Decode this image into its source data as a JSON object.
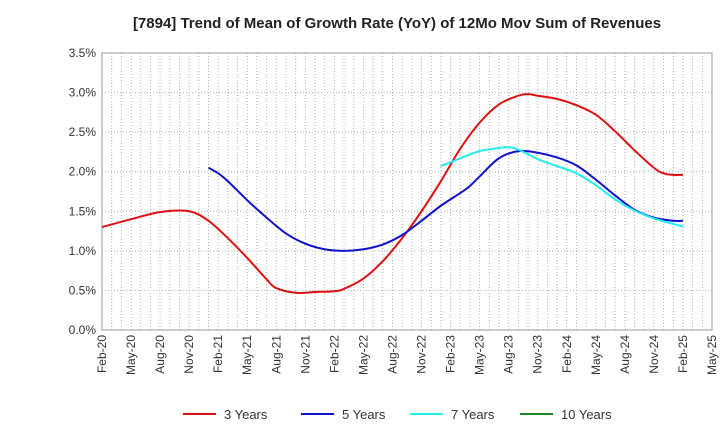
{
  "chart_data": {
    "type": "line",
    "title": "[7894]  Trend of Mean of Growth Rate (YoY) of 12Mo Mov Sum of Revenues",
    "xlabel": "",
    "ylabel": "",
    "ylim": [
      0,
      3.5
    ],
    "y_ticks": [
      0,
      0.5,
      1.0,
      1.5,
      2.0,
      2.5,
      3.0,
      3.5
    ],
    "y_tick_labels": [
      "0.0%",
      "0.5%",
      "1.0%",
      "1.5%",
      "2.0%",
      "2.5%",
      "3.0%",
      "3.5%"
    ],
    "x_tick_labels": [
      "Feb-20",
      "May-20",
      "Aug-20",
      "Nov-20",
      "Feb-21",
      "May-21",
      "Aug-21",
      "Nov-21",
      "Feb-22",
      "May-22",
      "Aug-22",
      "Nov-22",
      "Feb-23",
      "May-23",
      "Aug-23",
      "Nov-23",
      "Feb-24",
      "May-24",
      "Aug-24",
      "Nov-24",
      "Feb-25",
      "May-25"
    ],
    "x_range_months": [
      0,
      63
    ],
    "grid": true,
    "legend_position": "bottom",
    "series": [
      {
        "name": "3 Years",
        "color": "#dd1111",
        "x": [
          0,
          3,
          6,
          9,
          11,
          13,
          15,
          17,
          18,
          20,
          22,
          24,
          25,
          27,
          29,
          31,
          33,
          35,
          37,
          39,
          41,
          43,
          44,
          45,
          47,
          49,
          51,
          53,
          55,
          57,
          58,
          59,
          60
        ],
        "y": [
          1.3,
          1.4,
          1.49,
          1.5,
          1.38,
          1.16,
          0.91,
          0.64,
          0.53,
          0.47,
          0.48,
          0.49,
          0.52,
          0.65,
          0.87,
          1.16,
          1.5,
          1.88,
          2.29,
          2.62,
          2.85,
          2.96,
          2.98,
          2.96,
          2.92,
          2.84,
          2.72,
          2.51,
          2.27,
          2.05,
          1.98,
          1.96,
          1.96
        ]
      },
      {
        "name": "5 Years",
        "color": "#1111cc",
        "x": [
          11,
          12,
          13,
          15,
          17,
          19,
          21,
          23,
          25,
          27,
          29,
          31,
          33,
          35,
          37,
          38,
          39,
          41,
          43,
          45,
          47,
          49,
          51,
          53,
          55,
          57,
          59,
          60
        ],
        "y": [
          2.05,
          1.98,
          1.88,
          1.64,
          1.42,
          1.22,
          1.09,
          1.02,
          1.0,
          1.02,
          1.08,
          1.2,
          1.38,
          1.57,
          1.73,
          1.82,
          1.94,
          2.17,
          2.26,
          2.24,
          2.18,
          2.08,
          1.9,
          1.7,
          1.52,
          1.42,
          1.38,
          1.38
        ]
      },
      {
        "name": "7 Years",
        "color": "#22eeee",
        "x": [
          35,
          37,
          39,
          41,
          42,
          43,
          45,
          47,
          49,
          51,
          53,
          55,
          57,
          59,
          60
        ],
        "y": [
          2.07,
          2.17,
          2.26,
          2.3,
          2.31,
          2.28,
          2.16,
          2.07,
          1.98,
          1.83,
          1.65,
          1.51,
          1.41,
          1.34,
          1.31
        ]
      },
      {
        "name": "10 Years",
        "color": "#228822",
        "x": [],
        "y": []
      }
    ]
  }
}
